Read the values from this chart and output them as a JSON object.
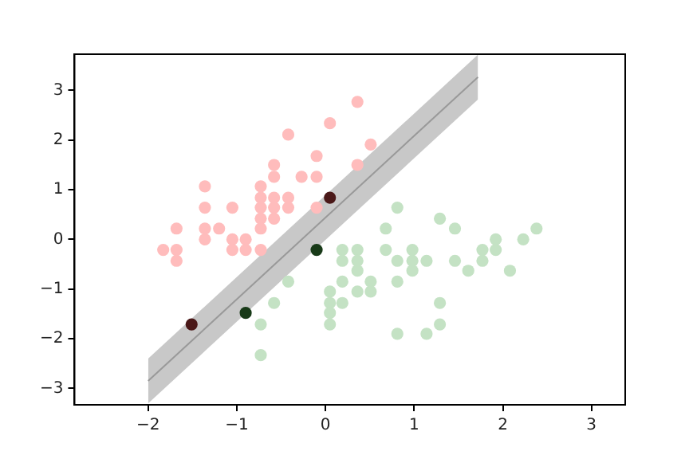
{
  "chart_data": {
    "type": "scatter",
    "xlim": [
      -2.83,
      3.38
    ],
    "ylim": [
      -3.33,
      3.73
    ],
    "xticks": [
      -2,
      -1,
      0,
      1,
      2,
      3
    ],
    "yticks": [
      -3,
      -2,
      -1,
      0,
      1,
      2,
      3
    ],
    "grid": false,
    "legend": false,
    "series": [
      {
        "type": "line",
        "marker": "none",
        "color": "#999999",
        "x": [
          -2.0,
          1.72
        ],
        "values": [
          -2.85,
          3.27
        ],
        "lower": [
          -3.3,
          2.82
        ],
        "upper": [
          -2.4,
          3.72
        ]
      },
      {
        "marker": "circle",
        "color": "#ffbcbc",
        "x": [
          0.36,
          0.05,
          -0.42,
          0.51,
          -0.58,
          -0.1,
          0.36,
          -0.58,
          -0.27,
          -0.1,
          -1.36,
          -0.73,
          -0.73,
          -0.58,
          -0.42,
          -1.36,
          -1.05,
          -0.73,
          -0.58,
          -0.42,
          -0.1,
          -0.73,
          -0.58,
          -1.68,
          -1.36,
          -1.2,
          -0.73,
          -1.36,
          -1.05,
          -0.9,
          -1.83,
          -1.68,
          -1.05,
          -0.9,
          -0.73,
          -1.68
        ],
        "values": [
          2.77,
          2.34,
          2.11,
          1.91,
          1.5,
          1.68,
          1.5,
          1.26,
          1.26,
          1.26,
          1.07,
          1.07,
          0.84,
          0.84,
          0.84,
          0.64,
          0.64,
          0.64,
          0.64,
          0.64,
          0.64,
          0.42,
          0.42,
          0.22,
          0.22,
          0.22,
          0.22,
          0,
          0,
          0,
          -0.21,
          -0.21,
          -0.21,
          -0.21,
          -0.21,
          -0.43
        ]
      },
      {
        "marker": "circle",
        "color": "#c4e2c4",
        "x": [
          0.81,
          1.29,
          0.68,
          1.46,
          2.38,
          1.92,
          2.23,
          0.19,
          0.36,
          0.68,
          0.98,
          1.77,
          1.92,
          0.19,
          0.36,
          0.81,
          0.98,
          1.14,
          1.46,
          1.77,
          0.36,
          0.98,
          1.61,
          2.08,
          -0.42,
          0.19,
          0.51,
          0.81,
          0.05,
          0.36,
          0.51,
          -0.58,
          0.05,
          0.19,
          1.29,
          0.05,
          -0.73,
          0.05,
          1.29,
          0.81,
          1.14,
          -0.73
        ],
        "values": [
          0.64,
          0.42,
          0.22,
          0.22,
          0.22,
          0,
          0,
          -0.21,
          -0.21,
          -0.21,
          -0.21,
          -0.21,
          -0.21,
          -0.43,
          -0.43,
          -0.43,
          -0.43,
          -0.43,
          -0.43,
          -0.43,
          -0.63,
          -0.63,
          -0.63,
          -0.63,
          -0.85,
          -0.85,
          -0.85,
          -0.85,
          -1.05,
          -1.05,
          -1.05,
          -1.28,
          -1.28,
          -1.28,
          -1.28,
          -1.48,
          -1.71,
          -1.71,
          -1.71,
          -1.9,
          -1.9,
          -2.33
        ]
      },
      {
        "marker": "circle",
        "color": "#4a1818",
        "x": [
          0.05,
          -1.51
        ],
        "values": [
          0.84,
          -1.71
        ]
      },
      {
        "marker": "circle",
        "color": "#183a18",
        "x": [
          -0.1,
          -0.9
        ],
        "values": [
          -0.21,
          -1.48
        ]
      }
    ]
  }
}
